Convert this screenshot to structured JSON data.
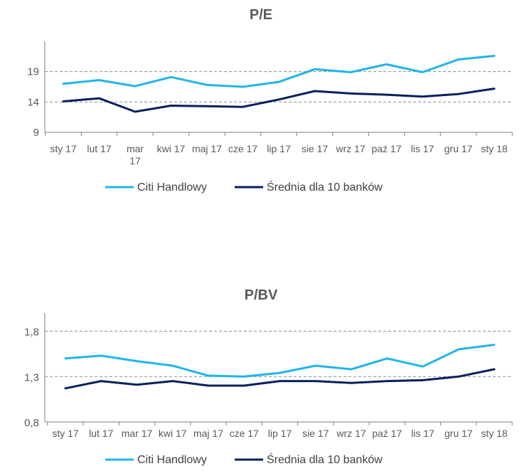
{
  "chart_data": [
    {
      "type": "line",
      "title": "P/E",
      "categories": [
        "sty 17",
        "lut 17",
        "mar 17",
        "kwi 17",
        "maj 17",
        "cze 17",
        "lip 17",
        "sie 17",
        "wrz 17",
        "paź 17",
        "lis 17",
        "gru 17",
        "sty 18"
      ],
      "yticks": [
        "9",
        "14",
        "19"
      ],
      "ylim": [
        9,
        24
      ],
      "grid": "dashed at 14 and 19",
      "legend": "bottom",
      "series": [
        {
          "name": "Citi Handlowy",
          "color": "#1fb5ea",
          "values": [
            17.0,
            17.6,
            16.6,
            18.1,
            16.8,
            16.5,
            17.3,
            19.4,
            18.9,
            20.2,
            18.9,
            21.0,
            21.6
          ]
        },
        {
          "name": "Średnia dla 10 banków",
          "color": "#0a1f5c",
          "values": [
            14.1,
            14.6,
            12.4,
            13.4,
            13.3,
            13.2,
            14.4,
            15.8,
            15.4,
            15.2,
            14.9,
            15.3,
            16.2
          ]
        }
      ]
    },
    {
      "type": "line",
      "title": "P/BV",
      "categories": [
        "sty 17",
        "lut 17",
        "mar 17",
        "kwi 17",
        "maj 17",
        "cze 17",
        "lip 17",
        "sie 17",
        "wrz 17",
        "paź 17",
        "lis 17",
        "gru 17",
        "sty 18"
      ],
      "yticks": [
        "0,8",
        "1,3",
        "1,8"
      ],
      "ylim": [
        0.8,
        2.0
      ],
      "grid": "dashed at 1.3 and 1.8",
      "legend": "bottom",
      "series": [
        {
          "name": "Citi Handlowy",
          "color": "#1fb5ea",
          "values": [
            1.5,
            1.53,
            1.47,
            1.42,
            1.31,
            1.3,
            1.34,
            1.42,
            1.38,
            1.5,
            1.41,
            1.6,
            1.65
          ]
        },
        {
          "name": "Średnia dla 10 banków",
          "color": "#0a1f5c",
          "values": [
            1.17,
            1.25,
            1.21,
            1.25,
            1.2,
            1.2,
            1.25,
            1.25,
            1.23,
            1.25,
            1.26,
            1.3,
            1.38
          ]
        }
      ]
    }
  ]
}
